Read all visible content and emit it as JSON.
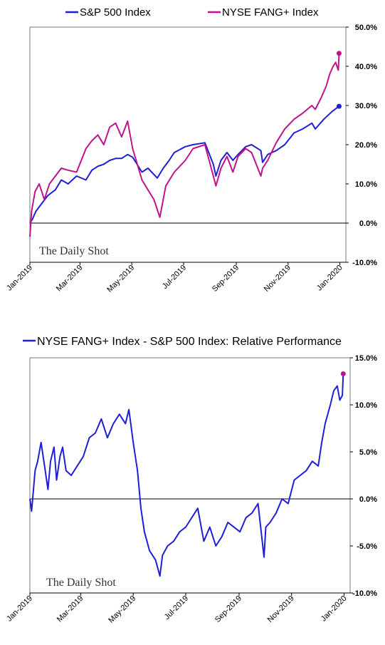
{
  "chart_data": [
    {
      "type": "line",
      "x_ticks": [
        "Jan-2019",
        "Mar-2019",
        "May-2019",
        "Jul-2019",
        "Sep-2019",
        "Nov-2019",
        "Jan-2020"
      ],
      "y_ticks": [
        "50.0%",
        "40.0%",
        "30.0%",
        "20.0%",
        "10.0%",
        "0.0%",
        "-10.0%"
      ],
      "ylim": [
        -10,
        50
      ],
      "y_unit": "%",
      "xlim": [
        "2019-01-01",
        "2020-01-08"
      ],
      "legend_position": "top",
      "grid": false,
      "watermark": "The Daily Shot",
      "series": [
        {
          "name": "S&P 500 Index",
          "color": "#1f1fd6",
          "end_marker": true,
          "x": [
            "2019-01-01",
            "2019-01-04",
            "2019-01-08",
            "2019-01-15",
            "2019-01-22",
            "2019-01-31",
            "2019-02-07",
            "2019-02-15",
            "2019-02-25",
            "2019-03-08",
            "2019-03-15",
            "2019-03-22",
            "2019-03-29",
            "2019-04-05",
            "2019-04-12",
            "2019-04-19",
            "2019-04-26",
            "2019-05-02",
            "2019-05-13",
            "2019-05-20",
            "2019-05-31",
            "2019-06-07",
            "2019-06-14",
            "2019-06-20",
            "2019-07-03",
            "2019-07-12",
            "2019-07-26",
            "2019-08-05",
            "2019-08-08",
            "2019-08-14",
            "2019-08-21",
            "2019-08-28",
            "2019-09-03",
            "2019-09-12",
            "2019-09-19",
            "2019-09-30",
            "2019-10-02",
            "2019-10-08",
            "2019-10-18",
            "2019-10-28",
            "2019-11-08",
            "2019-11-18",
            "2019-11-29",
            "2019-12-03",
            "2019-12-13",
            "2019-12-23",
            "2019-12-31"
          ],
          "y": [
            0.0,
            1.0,
            3.0,
            5.0,
            7.0,
            8.5,
            11.0,
            10.0,
            12.0,
            11.0,
            13.5,
            14.5,
            15.0,
            16.0,
            16.5,
            16.5,
            17.5,
            16.8,
            13.0,
            14.0,
            11.5,
            14.0,
            16.0,
            18.0,
            19.5,
            20.0,
            20.5,
            15.0,
            12.0,
            16.0,
            18.0,
            16.0,
            17.5,
            19.5,
            20.0,
            18.5,
            15.5,
            17.5,
            18.5,
            20.0,
            23.0,
            24.0,
            25.5,
            24.0,
            26.5,
            28.5,
            29.8
          ]
        },
        {
          "name": "NYSE FANG+ Index",
          "color": "#c0138a",
          "end_marker": true,
          "x": [
            "2019-01-01",
            "2019-01-03",
            "2019-01-07",
            "2019-01-12",
            "2019-01-18",
            "2019-01-24",
            "2019-01-31",
            "2019-02-07",
            "2019-02-15",
            "2019-02-25",
            "2019-03-08",
            "2019-03-15",
            "2019-03-22",
            "2019-03-29",
            "2019-04-05",
            "2019-04-12",
            "2019-04-19",
            "2019-04-26",
            "2019-05-02",
            "2019-05-13",
            "2019-05-20",
            "2019-05-27",
            "2019-06-03",
            "2019-06-10",
            "2019-06-20",
            "2019-07-03",
            "2019-07-12",
            "2019-07-26",
            "2019-08-05",
            "2019-08-08",
            "2019-08-14",
            "2019-08-21",
            "2019-08-28",
            "2019-09-03",
            "2019-09-12",
            "2019-09-19",
            "2019-09-30",
            "2019-10-02",
            "2019-10-08",
            "2019-10-18",
            "2019-10-28",
            "2019-11-08",
            "2019-11-18",
            "2019-11-29",
            "2019-12-03",
            "2019-12-10",
            "2019-12-16",
            "2019-12-20",
            "2019-12-24",
            "2019-12-27",
            "2019-12-30",
            "2019-12-31"
          ],
          "y": [
            -3.5,
            3.0,
            8.0,
            10.0,
            6.0,
            10.0,
            12.0,
            14.0,
            13.5,
            13.0,
            19.0,
            21.0,
            22.5,
            20.0,
            24.5,
            25.5,
            22.0,
            26.0,
            19.0,
            11.0,
            8.5,
            6.0,
            1.5,
            9.5,
            13.0,
            16.0,
            19.0,
            20.0,
            12.0,
            9.5,
            14.0,
            17.0,
            13.0,
            17.0,
            19.0,
            18.0,
            12.0,
            14.0,
            16.0,
            20.5,
            24.0,
            26.5,
            28.0,
            30.0,
            29.0,
            32.0,
            35.0,
            38.0,
            40.0,
            41.0,
            39.0,
            43.3
          ]
        }
      ]
    },
    {
      "type": "line",
      "title": "NYSE FANG+ Index - S&P 500 Index:   Relative Performance",
      "x_ticks": [
        "Jan-2019",
        "Mar-2019",
        "May-2019",
        "Jul-2019",
        "Sep-2019",
        "Nov-2019",
        "Jan-2020"
      ],
      "y_ticks": [
        "15.0%",
        "10.0%",
        "5.0%",
        "0.0%",
        "-5.0%",
        "-10.0%"
      ],
      "ylim": [
        -10,
        15
      ],
      "y_unit": "%",
      "xlim": [
        "2019-01-01",
        "2020-01-08"
      ],
      "legend_position": "top",
      "grid": false,
      "watermark": "The Daily Shot",
      "series": [
        {
          "name": "NYSE FANG+ Index - S&P 500 Index:   Relative Performance",
          "color": "#1f1fd6",
          "end_marker_color": "#c0138a",
          "x": [
            "2019-01-01",
            "2019-01-03",
            "2019-01-07",
            "2019-01-10",
            "2019-01-14",
            "2019-01-18",
            "2019-01-22",
            "2019-01-25",
            "2019-01-29",
            "2019-02-01",
            "2019-02-05",
            "2019-02-08",
            "2019-02-12",
            "2019-02-18",
            "2019-02-25",
            "2019-03-04",
            "2019-03-11",
            "2019-03-18",
            "2019-03-25",
            "2019-04-01",
            "2019-04-08",
            "2019-04-15",
            "2019-04-22",
            "2019-04-26",
            "2019-05-01",
            "2019-05-06",
            "2019-05-10",
            "2019-05-14",
            "2019-05-20",
            "2019-05-27",
            "2019-06-01",
            "2019-06-04",
            "2019-06-10",
            "2019-06-17",
            "2019-06-24",
            "2019-07-01",
            "2019-07-08",
            "2019-07-15",
            "2019-07-22",
            "2019-07-29",
            "2019-08-05",
            "2019-08-12",
            "2019-08-19",
            "2019-08-26",
            "2019-09-02",
            "2019-09-09",
            "2019-09-16",
            "2019-09-23",
            "2019-09-30",
            "2019-10-02",
            "2019-10-07",
            "2019-10-14",
            "2019-10-21",
            "2019-10-28",
            "2019-11-04",
            "2019-11-11",
            "2019-11-18",
            "2019-11-25",
            "2019-12-02",
            "2019-12-06",
            "2019-12-10",
            "2019-12-16",
            "2019-12-20",
            "2019-12-24",
            "2019-12-27",
            "2019-12-30",
            "2019-12-31"
          ],
          "y": [
            0.0,
            -1.3,
            3.0,
            4.0,
            6.0,
            3.5,
            1.0,
            4.0,
            5.5,
            2.0,
            4.5,
            5.5,
            3.0,
            2.5,
            3.5,
            4.5,
            6.5,
            7.0,
            8.5,
            6.5,
            8.0,
            9.0,
            8.0,
            9.5,
            6.0,
            3.0,
            -1.0,
            -3.5,
            -5.5,
            -6.5,
            -8.2,
            -6.0,
            -5.0,
            -4.5,
            -3.5,
            -3.0,
            -2.0,
            -1.0,
            -4.5,
            -3.0,
            -5.0,
            -4.0,
            -2.5,
            -3.0,
            -3.5,
            -2.0,
            -1.5,
            -0.5,
            -6.2,
            -3.0,
            -2.5,
            -1.5,
            0.0,
            -0.5,
            2.0,
            2.5,
            3.0,
            4.0,
            3.5,
            6.0,
            8.0,
            10.0,
            11.5,
            12.0,
            10.5,
            11.0,
            13.3
          ]
        }
      ]
    }
  ]
}
